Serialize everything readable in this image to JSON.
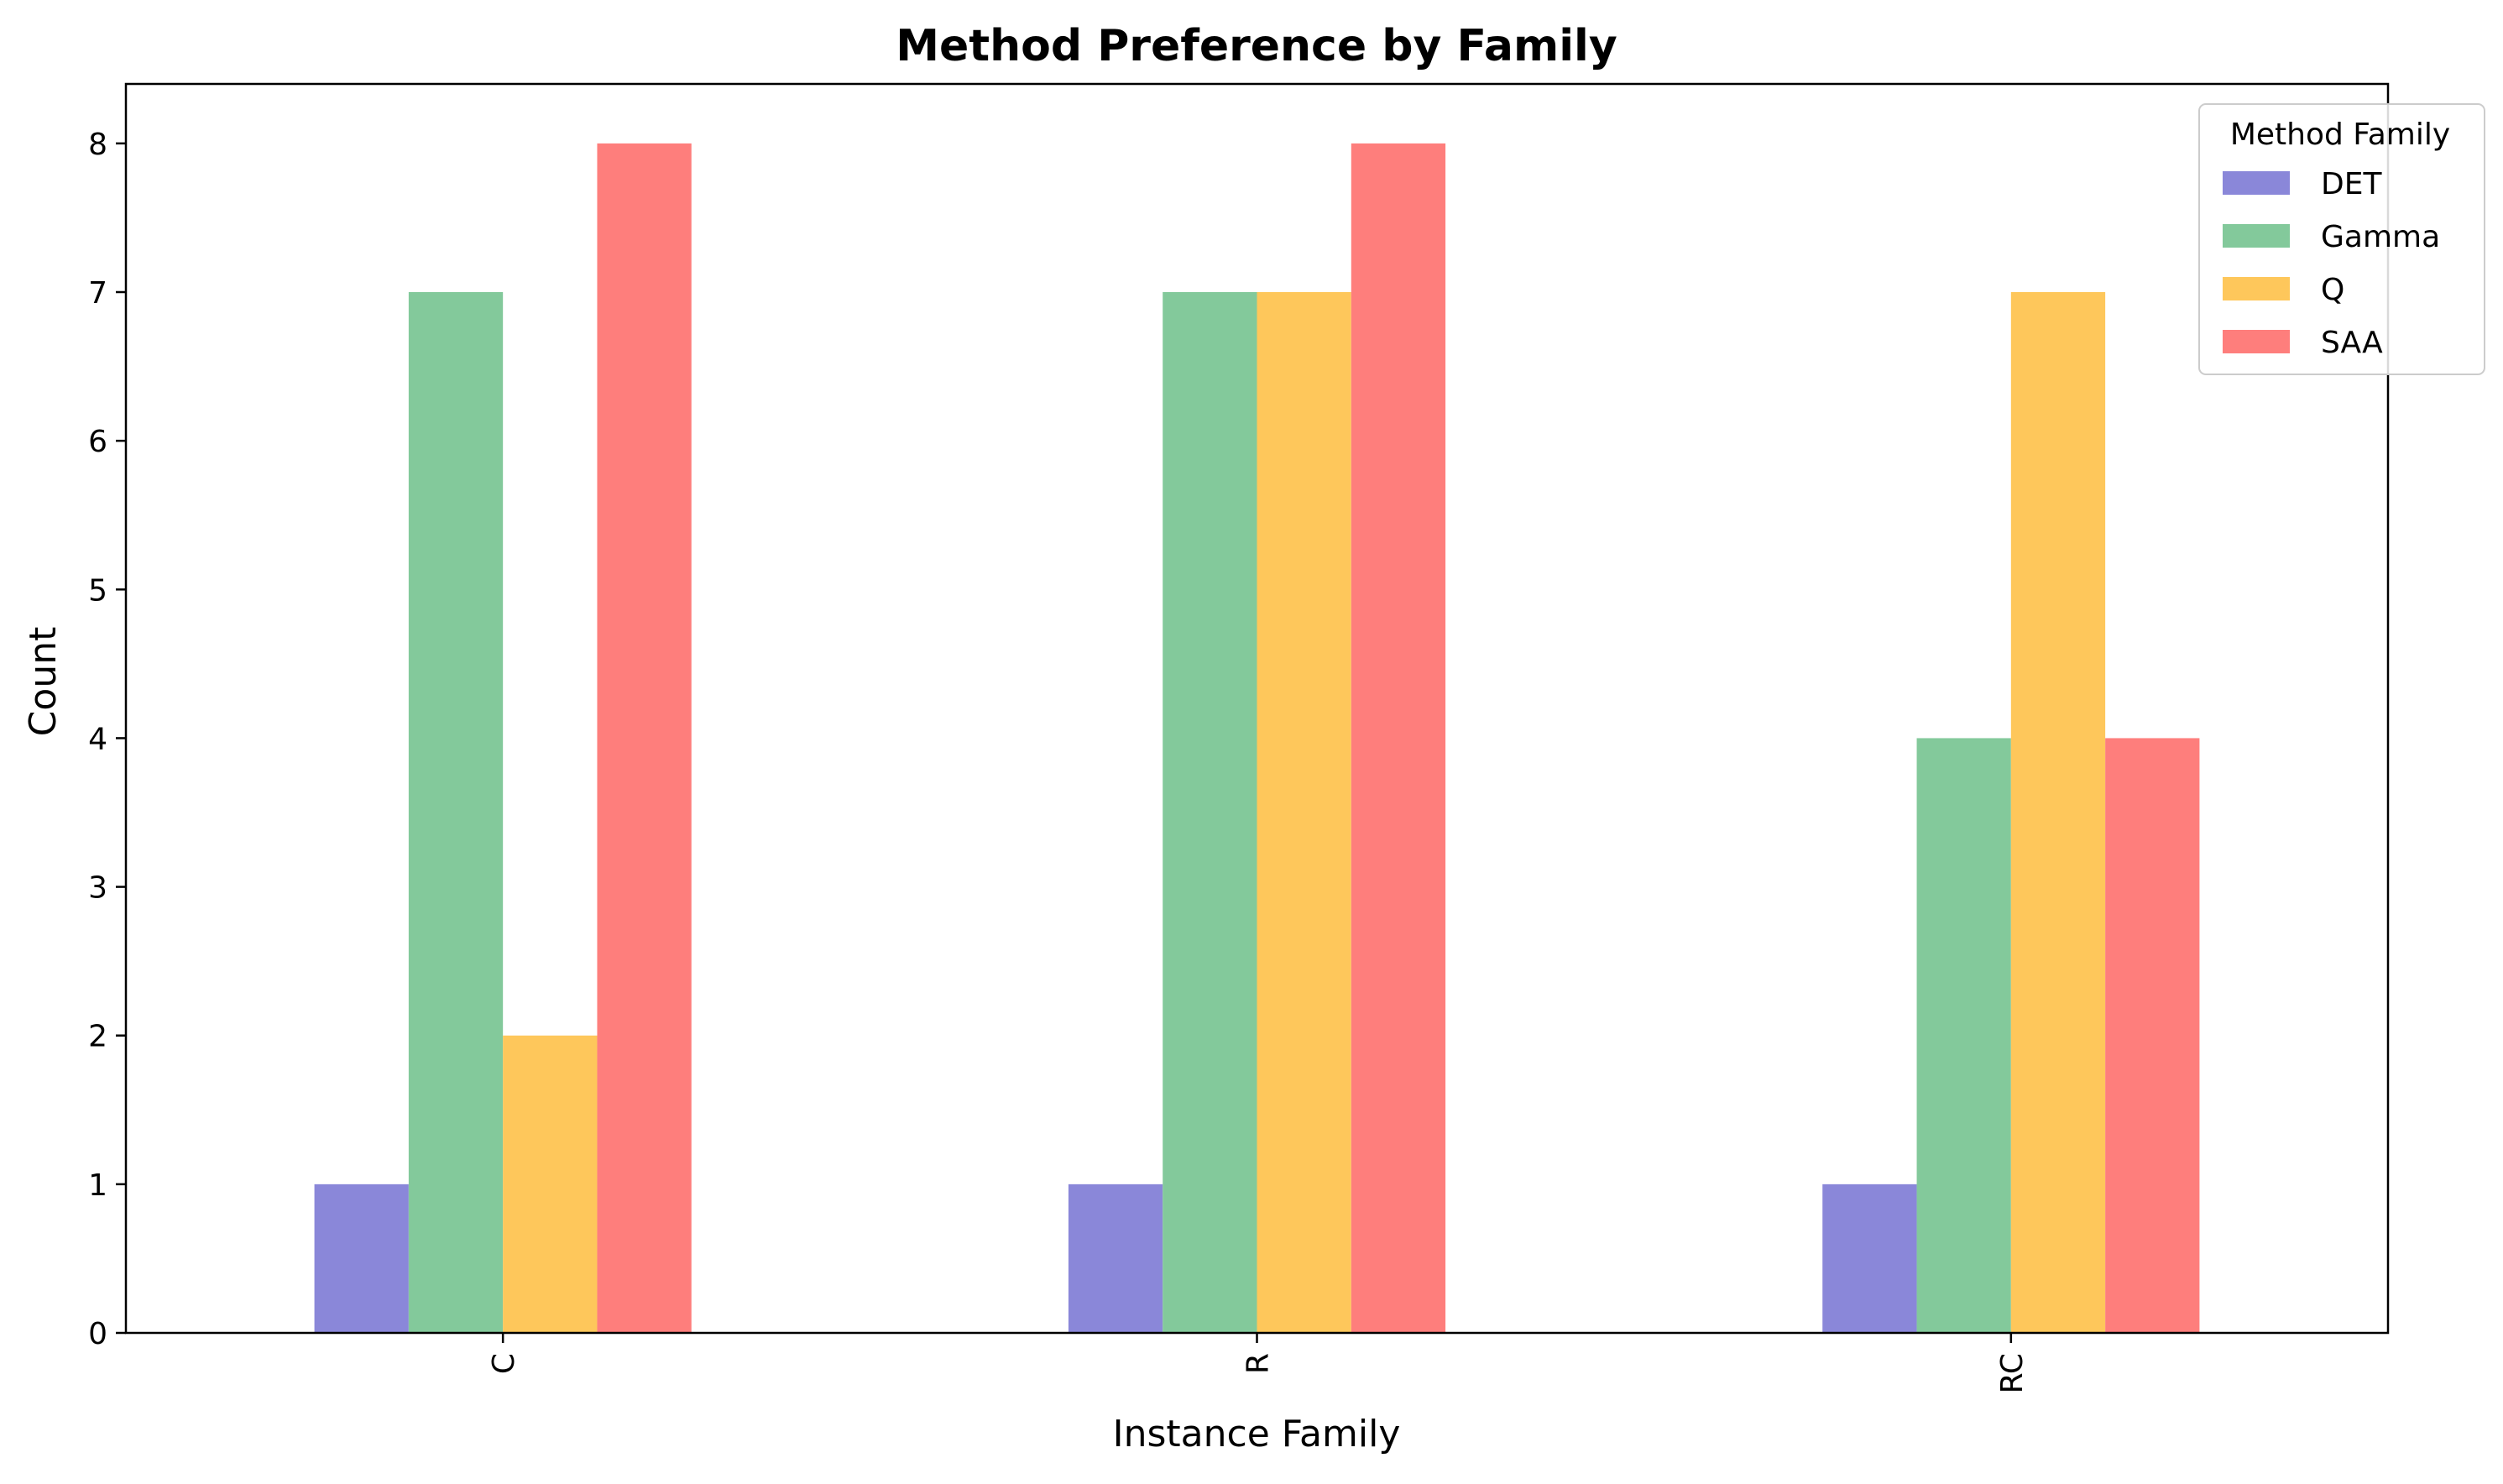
{
  "chart_data": {
    "type": "bar",
    "title": "Method Preference by Family",
    "xlabel": "Instance Family",
    "ylabel": "Count",
    "categories": [
      "C",
      "R",
      "RC"
    ],
    "series": [
      {
        "name": "DET",
        "values": [
          1,
          1,
          1
        ],
        "color": "#8a87d9"
      },
      {
        "name": "Gamma",
        "values": [
          7,
          7,
          4
        ],
        "color": "#83c99b"
      },
      {
        "name": "Q",
        "values": [
          2,
          7,
          7
        ],
        "color": "#fec75b"
      },
      {
        "name": "SAA",
        "values": [
          8,
          8,
          4
        ],
        "color": "#fe7e7c"
      }
    ],
    "ylim": [
      0,
      8.4
    ],
    "yticks": [
      0,
      1,
      2,
      3,
      4,
      5,
      6,
      7,
      8
    ],
    "grid": false,
    "legend": {
      "title": "Method Family",
      "placement": "top-right"
    }
  }
}
